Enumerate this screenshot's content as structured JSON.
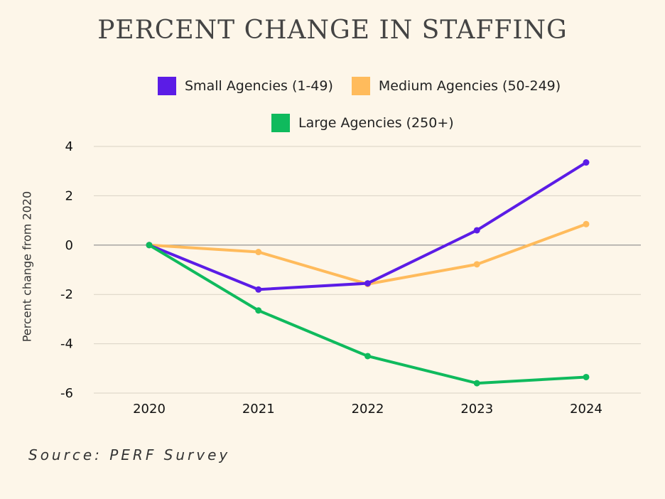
{
  "chart_data": {
    "type": "line",
    "title": "PERCENT CHANGE IN STAFFING",
    "ylabel": "Percent change from 2020",
    "xlabel": "",
    "categories": [
      "2020",
      "2021",
      "2022",
      "2023",
      "2024"
    ],
    "ylim": [
      -6,
      4
    ],
    "yticks": [
      4,
      2,
      0,
      -2,
      -4,
      -6
    ],
    "yticklabels": [
      "4",
      "2",
      "0",
      "-2",
      "-4",
      "-6"
    ],
    "grid": true,
    "legend_position": "top",
    "series": [
      {
        "name": "Small Agencies (1-49)",
        "color": "#5b1ce6",
        "values": [
          0,
          -1.8,
          -1.55,
          0.6,
          3.35
        ]
      },
      {
        "name": "Medium Agencies (50-249)",
        "color": "#ffbb5c",
        "values": [
          0,
          -0.28,
          -1.58,
          -0.78,
          0.85
        ]
      },
      {
        "name": "Large Agencies (250+)",
        "color": "#0fba5d",
        "values": [
          0,
          -2.65,
          -4.5,
          -5.6,
          -5.35
        ]
      }
    ],
    "source": "Source: PERF Survey"
  }
}
